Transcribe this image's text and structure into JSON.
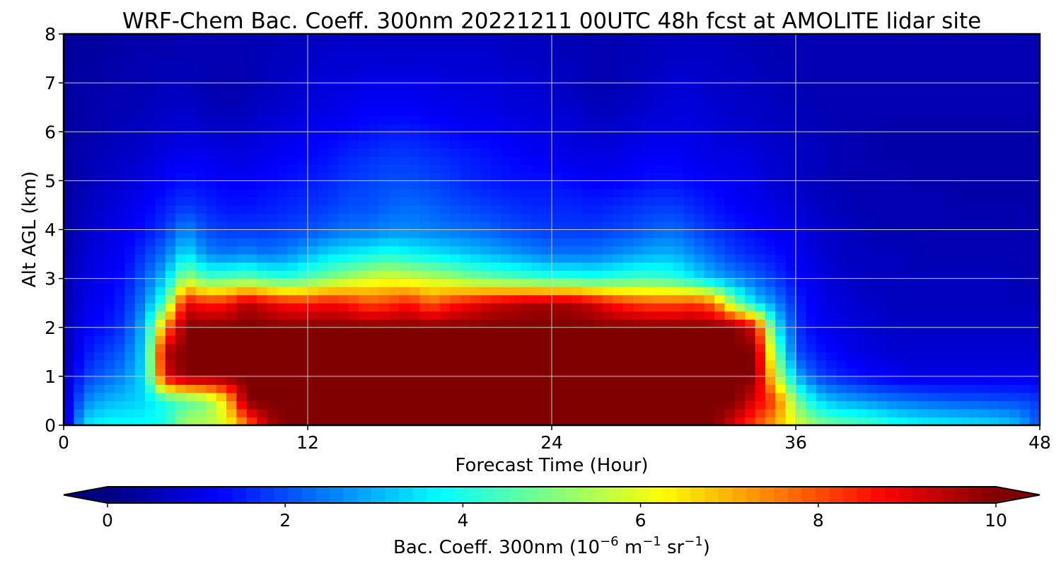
{
  "chart_data": {
    "type": "heatmap",
    "title": "WRF-Chem Bac. Coeff. 300nm  20221211 00UTC 48h fcst at AMOLITE lidar site",
    "xlabel": "Forecast Time (Hour)",
    "ylabel": "Alt AGL (km)",
    "xlim": [
      0,
      48
    ],
    "ylim": [
      0,
      8
    ],
    "x_ticks": [
      0,
      12,
      24,
      36,
      48
    ],
    "y_ticks": [
      0,
      1,
      2,
      3,
      4,
      5,
      6,
      7,
      8
    ],
    "grid": true,
    "colormap": "jet",
    "colorbar": {
      "label_main": "Bac. Coeff. 300nm  (10",
      "label_exp1": "−6",
      "label_mid": " m",
      "label_exp2": "−1",
      "label_mid2": " sr",
      "label_exp3": "−1",
      "label_end": ")",
      "range": [
        0,
        10
      ],
      "ticks": [
        0,
        2,
        4,
        6,
        8,
        10
      ],
      "extend": "both",
      "placement": "bottom"
    },
    "x": [
      0,
      1,
      2,
      3,
      4,
      5,
      6,
      7,
      8,
      9,
      10,
      11,
      12,
      13,
      14,
      15,
      16,
      17,
      18,
      19,
      20,
      21,
      22,
      23,
      24,
      25,
      26,
      27,
      28,
      29,
      30,
      31,
      32,
      33,
      34,
      35,
      36,
      37,
      38,
      39,
      40,
      41,
      42,
      43,
      44,
      45,
      46,
      47,
      48
    ],
    "y": [
      0,
      0.5,
      1,
      1.5,
      2,
      2.5,
      3,
      3.5,
      4,
      4.5,
      5,
      5.5,
      6,
      6.5,
      7,
      7.5,
      8
    ],
    "values": [
      [
        0.5,
        3.5,
        3.8,
        3.8,
        3.8,
        4.0,
        5.5,
        5.5,
        6.0,
        7.5,
        9.5,
        10,
        10,
        10,
        10,
        10,
        10,
        10,
        10,
        10,
        10,
        10,
        10,
        10,
        10,
        10,
        10,
        10,
        10,
        10,
        10,
        10,
        10,
        9.0,
        8.0,
        7.0,
        6.0,
        5.2,
        4.8,
        4.6,
        4.4,
        4.0,
        3.8,
        3.7,
        3.6,
        3.5,
        3.4,
        3.0,
        2.0
      ],
      [
        0.5,
        2.5,
        3.0,
        3.2,
        3.4,
        4.0,
        4.5,
        5.0,
        6.5,
        10,
        10,
        10,
        10,
        10,
        10,
        10,
        10,
        10,
        10,
        10,
        10,
        10,
        10,
        10,
        10,
        10,
        10,
        10,
        10,
        10,
        10,
        10,
        10,
        10,
        9.0,
        8.0,
        5.0,
        3.5,
        3.0,
        2.8,
        2.6,
        2.4,
        2.3,
        2.2,
        2.1,
        2.1,
        2.0,
        2.0,
        1.8
      ],
      [
        0.5,
        1.8,
        2.2,
        2.6,
        3.5,
        9.0,
        10,
        10,
        10,
        10,
        10,
        10,
        10,
        10,
        10,
        10,
        10,
        10,
        10,
        10,
        10,
        10,
        10,
        10,
        10,
        10,
        10,
        10,
        10,
        10,
        10,
        10,
        10,
        10,
        10,
        6.0,
        3.0,
        2.0,
        1.6,
        1.4,
        1.2,
        1.1,
        1.0,
        1.0,
        1.0,
        1.0,
        1.0,
        1.0,
        1.0
      ],
      [
        0.4,
        1.4,
        1.8,
        2.2,
        3.4,
        9.5,
        10,
        10,
        10,
        10,
        10,
        10,
        10,
        10,
        10,
        10,
        10,
        10,
        10,
        10,
        10,
        10,
        10,
        10,
        10,
        10,
        10,
        10,
        10,
        10,
        10,
        10,
        10,
        10,
        10,
        5.0,
        2.0,
        1.5,
        1.2,
        1.0,
        0.9,
        0.8,
        0.8,
        0.8,
        0.8,
        0.8,
        0.8,
        0.8,
        0.8
      ],
      [
        0.4,
        1.2,
        1.4,
        1.8,
        3.2,
        7.5,
        10,
        10,
        10,
        10,
        10,
        10,
        10,
        10,
        10,
        10,
        10,
        10,
        10,
        10,
        10,
        10,
        10,
        10,
        10,
        10,
        10,
        10,
        10,
        10,
        10,
        10,
        10,
        10,
        9.0,
        3.8,
        1.8,
        1.2,
        1.0,
        0.9,
        0.8,
        0.7,
        0.7,
        0.7,
        0.7,
        0.7,
        0.7,
        0.7,
        0.7
      ],
      [
        0.4,
        1.0,
        1.2,
        1.6,
        2.6,
        4.5,
        9.0,
        8.5,
        8.6,
        9.5,
        9.0,
        8.6,
        8.5,
        8.8,
        8.5,
        8.0,
        8.2,
        8.6,
        7.8,
        8.4,
        8.8,
        9.2,
        9.4,
        9.6,
        9.6,
        9.6,
        9.2,
        8.6,
        8.2,
        8.0,
        8.0,
        8.2,
        7.6,
        5.0,
        3.4,
        2.6,
        1.6,
        1.1,
        0.9,
        0.8,
        0.7,
        0.6,
        0.6,
        0.6,
        0.6,
        0.6,
        0.6,
        0.6,
        0.6
      ],
      [
        0.4,
        0.9,
        1.1,
        1.4,
        2.2,
        3.2,
        5.5,
        4.5,
        4.6,
        4.8,
        4.4,
        4.2,
        4.6,
        5.0,
        5.4,
        5.8,
        6.0,
        5.8,
        5.6,
        5.4,
        5.0,
        4.8,
        4.6,
        4.4,
        4.2,
        4.2,
        4.0,
        4.2,
        4.4,
        4.4,
        4.2,
        3.6,
        3.0,
        2.6,
        2.2,
        1.8,
        1.3,
        1.0,
        0.8,
        0.7,
        0.6,
        0.6,
        0.6,
        0.6,
        0.6,
        0.6,
        0.6,
        0.5,
        0.5
      ],
      [
        0.4,
        0.8,
        1.0,
        1.2,
        1.8,
        2.4,
        3.6,
        2.6,
        2.4,
        2.6,
        2.4,
        2.6,
        3.0,
        3.4,
        3.6,
        3.8,
        4.0,
        3.8,
        3.6,
        3.4,
        3.2,
        3.0,
        2.8,
        2.6,
        2.4,
        2.4,
        2.4,
        2.6,
        2.8,
        3.0,
        3.0,
        2.6,
        2.2,
        1.8,
        1.6,
        1.4,
        1.1,
        0.9,
        0.7,
        0.6,
        0.6,
        0.6,
        0.5,
        0.5,
        0.5,
        0.5,
        0.5,
        0.5,
        0.5
      ],
      [
        0.3,
        0.7,
        0.9,
        1.1,
        1.4,
        1.8,
        2.6,
        2.0,
        1.8,
        1.8,
        1.8,
        1.9,
        2.0,
        2.2,
        2.4,
        2.4,
        2.6,
        2.6,
        2.5,
        2.4,
        2.3,
        2.2,
        2.0,
        1.9,
        1.8,
        1.8,
        1.8,
        1.9,
        2.0,
        2.2,
        2.3,
        2.0,
        1.7,
        1.5,
        1.3,
        1.1,
        1.0,
        0.8,
        0.7,
        0.6,
        0.5,
        0.5,
        0.5,
        0.5,
        0.5,
        0.5,
        0.5,
        0.5,
        0.5
      ],
      [
        0.3,
        0.6,
        0.8,
        1.0,
        1.2,
        1.5,
        1.8,
        1.6,
        1.4,
        1.4,
        1.5,
        1.6,
        1.7,
        1.8,
        2.0,
        2.0,
        2.2,
        2.3,
        2.2,
        2.0,
        1.9,
        1.8,
        1.7,
        1.6,
        1.6,
        1.6,
        1.5,
        1.6,
        1.7,
        1.8,
        1.8,
        1.6,
        1.4,
        1.2,
        1.1,
        1.0,
        0.8,
        0.7,
        0.6,
        0.5,
        0.5,
        0.5,
        0.5,
        0.5,
        0.4,
        0.4,
        0.4,
        0.4,
        0.4
      ],
      [
        0.3,
        0.5,
        0.7,
        0.8,
        1.0,
        1.2,
        1.4,
        1.3,
        1.2,
        1.2,
        1.3,
        1.4,
        1.5,
        1.6,
        1.8,
        1.9,
        2.0,
        2.0,
        1.9,
        1.8,
        1.6,
        1.5,
        1.4,
        1.4,
        1.4,
        1.3,
        1.2,
        1.2,
        1.3,
        1.4,
        1.4,
        1.3,
        1.2,
        1.1,
        1.0,
        0.8,
        0.7,
        0.6,
        0.5,
        0.5,
        0.5,
        0.5,
        0.4,
        0.4,
        0.4,
        0.4,
        0.4,
        0.4,
        0.4
      ],
      [
        0.3,
        0.5,
        0.6,
        0.7,
        0.8,
        1.0,
        1.1,
        1.1,
        1.0,
        1.0,
        1.1,
        1.2,
        1.3,
        1.4,
        1.6,
        1.7,
        1.8,
        1.8,
        1.7,
        1.6,
        1.5,
        1.4,
        1.3,
        1.2,
        1.1,
        1.0,
        1.0,
        1.0,
        1.1,
        1.2,
        1.2,
        1.1,
        1.0,
        1.0,
        0.9,
        0.8,
        0.7,
        0.6,
        0.5,
        0.5,
        0.4,
        0.4,
        0.4,
        0.4,
        0.4,
        0.4,
        0.4,
        0.4,
        0.4
      ],
      [
        0.3,
        0.4,
        0.5,
        0.6,
        0.7,
        0.8,
        0.9,
        0.8,
        0.8,
        0.8,
        0.9,
        1.0,
        1.1,
        1.2,
        1.3,
        1.4,
        1.5,
        1.5,
        1.4,
        1.3,
        1.2,
        1.2,
        1.1,
        1.0,
        1.0,
        0.9,
        0.8,
        0.8,
        0.9,
        1.0,
        1.0,
        1.0,
        0.9,
        0.8,
        0.8,
        0.7,
        0.6,
        0.6,
        0.5,
        0.5,
        0.4,
        0.4,
        0.4,
        0.4,
        0.4,
        0.4,
        0.4,
        0.4,
        0.4
      ],
      [
        0.3,
        0.4,
        0.5,
        0.5,
        0.6,
        0.7,
        0.7,
        0.6,
        0.5,
        0.6,
        0.7,
        0.8,
        0.9,
        1.0,
        1.1,
        1.2,
        1.2,
        1.2,
        1.1,
        1.1,
        1.0,
        1.0,
        0.9,
        0.9,
        0.8,
        0.8,
        0.6,
        0.6,
        0.7,
        0.8,
        0.9,
        0.9,
        0.8,
        0.7,
        0.7,
        0.6,
        0.6,
        0.5,
        0.5,
        0.5,
        0.5,
        0.5,
        0.5,
        0.5,
        0.5,
        0.5,
        0.5,
        0.5,
        0.5
      ],
      [
        0.3,
        0.4,
        0.4,
        0.5,
        0.5,
        0.6,
        0.6,
        0.5,
        0.4,
        0.5,
        0.6,
        0.7,
        0.8,
        0.9,
        0.9,
        1.0,
        1.0,
        1.0,
        1.0,
        0.9,
        0.9,
        0.9,
        0.8,
        0.8,
        0.7,
        0.6,
        0.5,
        0.5,
        0.6,
        0.7,
        0.8,
        0.8,
        0.7,
        0.7,
        0.6,
        0.6,
        0.5,
        0.5,
        0.5,
        0.5,
        0.5,
        0.5,
        0.5,
        0.5,
        0.5,
        0.5,
        0.5,
        0.5,
        0.5
      ],
      [
        0.3,
        0.3,
        0.4,
        0.4,
        0.5,
        0.5,
        0.5,
        0.5,
        0.5,
        0.5,
        0.6,
        0.6,
        0.7,
        0.8,
        0.8,
        0.8,
        0.8,
        0.8,
        0.8,
        0.8,
        0.8,
        0.8,
        0.7,
        0.7,
        0.6,
        0.6,
        0.5,
        0.5,
        0.6,
        0.6,
        0.7,
        0.7,
        0.7,
        0.6,
        0.6,
        0.5,
        0.5,
        0.5,
        0.5,
        0.5,
        0.5,
        0.5,
        0.5,
        0.5,
        0.5,
        0.5,
        0.5,
        0.5,
        0.5
      ],
      [
        0.3,
        0.3,
        0.3,
        0.4,
        0.4,
        0.4,
        0.5,
        0.5,
        0.5,
        0.5,
        0.5,
        0.6,
        0.6,
        0.6,
        0.7,
        0.7,
        0.7,
        0.7,
        0.7,
        0.7,
        0.7,
        0.7,
        0.6,
        0.6,
        0.6,
        0.5,
        0.5,
        0.5,
        0.5,
        0.6,
        0.6,
        0.6,
        0.6,
        0.6,
        0.5,
        0.5,
        0.5,
        0.5,
        0.5,
        0.5,
        0.5,
        0.5,
        0.5,
        0.5,
        0.5,
        0.5,
        0.5,
        0.5,
        0.5
      ]
    ]
  }
}
